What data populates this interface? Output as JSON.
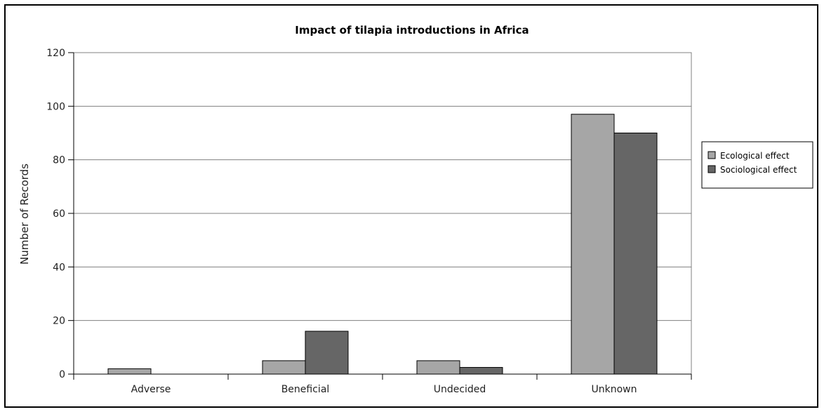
{
  "chart_data": {
    "type": "bar",
    "title": "Impact of tilapia introductions in Africa",
    "xlabel": "",
    "ylabel": "Number of Records",
    "categories": [
      "Adverse",
      "Beneficial",
      "Undecided",
      "Unknown"
    ],
    "series": [
      {
        "name": "Ecological effect",
        "values": [
          2,
          5,
          5,
          97
        ],
        "color": "#a6a6a6"
      },
      {
        "name": "Sociological effect",
        "values": [
          0,
          16,
          2.5,
          90
        ],
        "color": "#666666"
      }
    ],
    "ylim": [
      0,
      120
    ],
    "yticks": [
      "0",
      "20",
      "40",
      "60",
      "80",
      "100",
      "120"
    ],
    "grid": true,
    "legend": "right"
  }
}
